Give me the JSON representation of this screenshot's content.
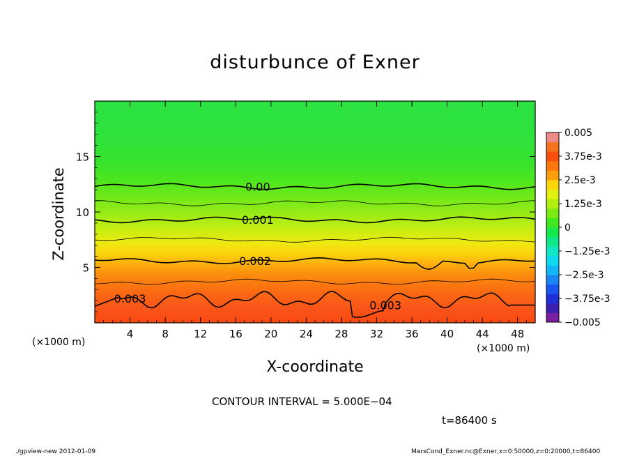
{
  "chart_data": {
    "type": "contour",
    "title": "disturbunce of Exner",
    "xlabel": "X-coordinate",
    "ylabel": "Z-coordinate",
    "x_unit": "(×1000 m)",
    "y_unit": "(×1000 m)",
    "xlim": [
      0,
      50
    ],
    "ylim": [
      0,
      20
    ],
    "x_ticks": [
      4,
      8,
      12,
      16,
      20,
      24,
      28,
      32,
      36,
      40,
      44,
      48
    ],
    "y_ticks": [
      5,
      10,
      15
    ],
    "colorbar": {
      "labels": [
        "0.005",
        "3.75e-3",
        "2.5e-3",
        "1.25e-3",
        "0",
        "−1.25e-3",
        "−2.5e-3",
        "−3.75e-3",
        "−0.005"
      ],
      "min": -0.005,
      "max": 0.005,
      "colors": [
        "#7a1fa2",
        "#3a1fb0",
        "#1e2fd8",
        "#1a55f0",
        "#1d86f5",
        "#13b6f4",
        "#10d8f0",
        "#12e6c4",
        "#0fe688",
        "#14e84a",
        "#40e820",
        "#7aea14",
        "#b2ee12",
        "#e2f010",
        "#fbd60e",
        "#fba00c",
        "#fb780c",
        "#f94e0e",
        "#f5721e",
        "#f08a88"
      ]
    },
    "contour_labels": [
      "0.00",
      "0.001",
      "0.002",
      "0.003",
      "0.003"
    ],
    "contour_interval": "CONTOUR INTERVAL = 5.000E−04"
  },
  "annotations": {
    "time": "t=86400 s",
    "footer_left": "./gpview-new   2012-01-09",
    "footer_right": "MarsCond_Exner.nc@Exner,x=0:50000,z=0:20000,t=86400"
  }
}
